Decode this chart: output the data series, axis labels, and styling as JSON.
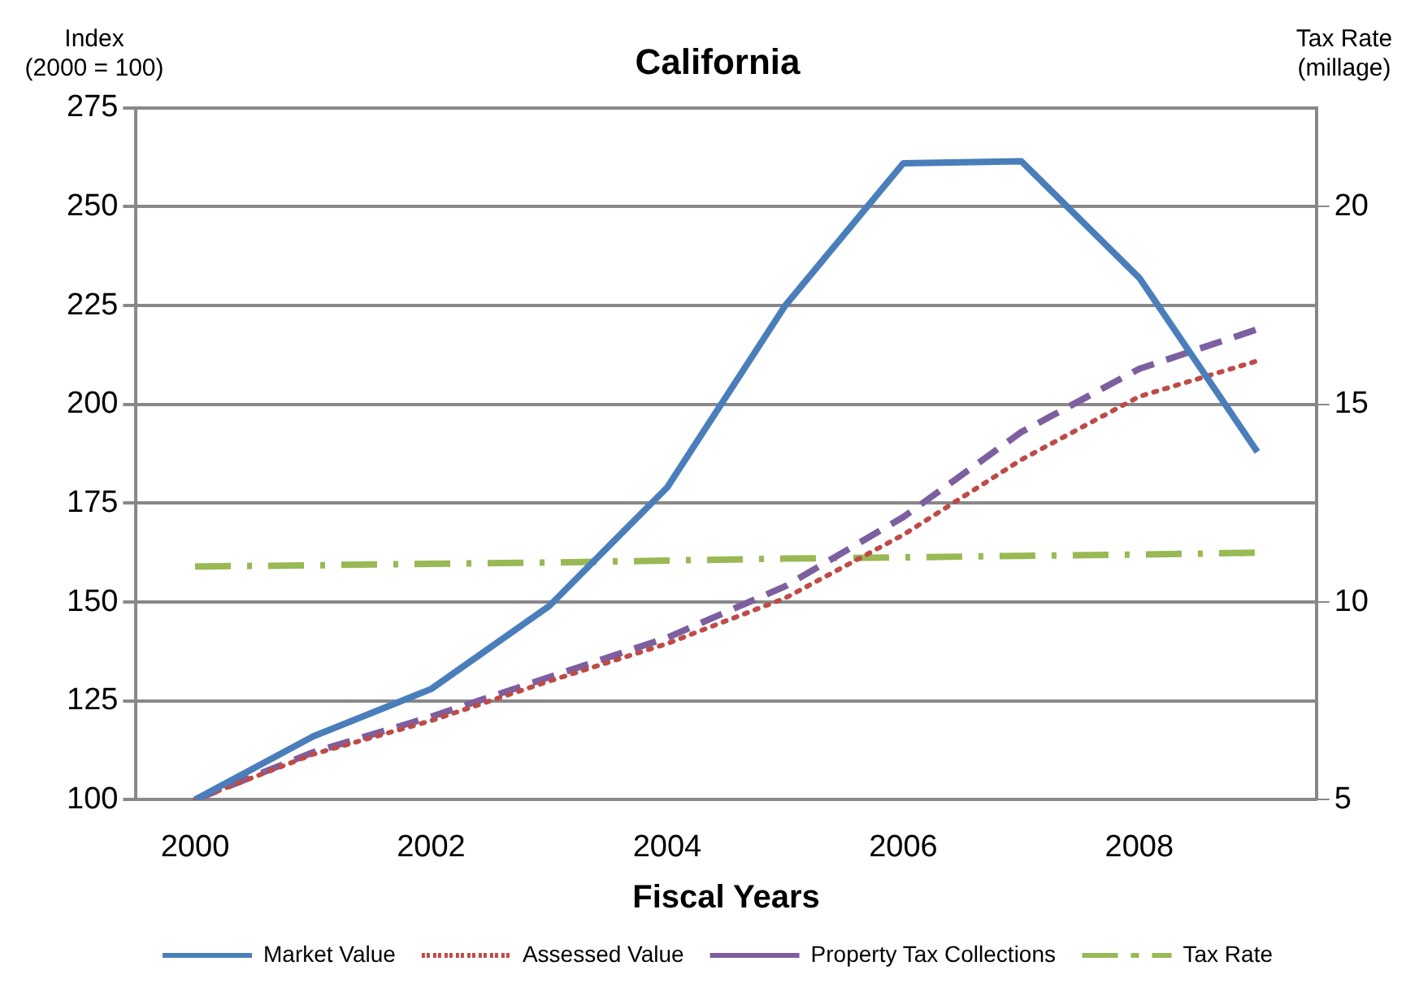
{
  "chart_data": {
    "type": "line",
    "title": "California",
    "xlabel": "Fiscal Years",
    "ylabel": "Index\n(2000 = 100)",
    "y2label": "Tax Rate\n(millage)",
    "categories": [
      "2000",
      null,
      "2002",
      null,
      "2004",
      null,
      "2006",
      null,
      "2008",
      null
    ],
    "series": [
      {
        "name": "Market Value",
        "color": "#4a7ebb",
        "line_style": "solid",
        "values": [
          100,
          116,
          128,
          149,
          179,
          225,
          261,
          261.5,
          232,
          188
        ]
      },
      {
        "name": "Assessed Value",
        "color": "#be4b48",
        "line_style": "dotted",
        "values": [
          100,
          111.5,
          120,
          130,
          139.5,
          151,
          167,
          186,
          202,
          211
        ]
      },
      {
        "name": "Property Tax Collections",
        "color": "#7d5fa0",
        "line_style": "dashed",
        "values": [
          100,
          112,
          121,
          131,
          141,
          154,
          171.5,
          193,
          209,
          219
        ]
      },
      {
        "name": "Tax Rate",
        "color": "#98b954",
        "line_style": "dashdot",
        "axis": "y2",
        "values": [
          10.9,
          10.93,
          10.97,
          11.0,
          11.05,
          11.1,
          11.13,
          11.17,
          11.2,
          11.25
        ]
      }
    ],
    "ylim": [
      100,
      275
    ],
    "yticks": [
      100,
      125,
      150,
      175,
      200,
      225,
      250,
      275
    ],
    "y2lim": [
      5,
      22.5
    ],
    "y2ticks": [
      5,
      10,
      15,
      20
    ],
    "grid": "y",
    "legend": "bottom",
    "marker": "none"
  }
}
